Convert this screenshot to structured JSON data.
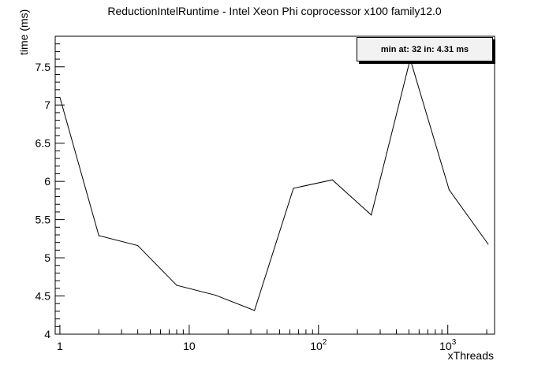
{
  "chart_data": {
    "type": "line",
    "title": "ReductionIntelRuntime - Intel Xeon Phi coprocessor x100 family12.0",
    "xlabel": "xThreads",
    "ylabel": "time (ms)",
    "xscale": "log",
    "xlim": [
      0.92,
      2300
    ],
    "ylim": [
      4.0,
      7.9
    ],
    "grid": false,
    "annotation": "min at: 32 in: 4.31 ms",
    "x_tick_labels": [
      "1",
      "10",
      "10^2",
      "10^3"
    ],
    "y_tick_labels": [
      "4",
      "4.5",
      "5",
      "5.5",
      "6",
      "6.5",
      "7",
      "7.5"
    ],
    "series": [
      {
        "x": [
          1,
          2,
          4,
          8,
          16,
          32,
          64,
          128,
          256,
          512,
          1024,
          2048
        ],
        "y": [
          7.1,
          5.29,
          5.16,
          4.64,
          4.51,
          4.31,
          5.91,
          6.02,
          5.56,
          7.6,
          5.89,
          5.18
        ]
      }
    ]
  }
}
